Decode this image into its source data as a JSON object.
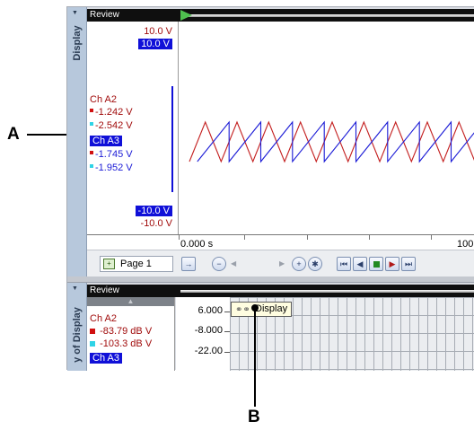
{
  "top_panel": {
    "side_tab": "Display",
    "review_label": "Review",
    "legend": {
      "top_red": "10.0  V",
      "top_blue": "10.0  V",
      "channel_a2": "Ch A2",
      "a2_value_1": "-1.242  V",
      "a2_value_2": "-2.542  V",
      "channel_a3": "Ch A3",
      "a3_value_1": "-1.745  V",
      "a3_value_2": "-1.952  V",
      "bottom_blue": "-10.0  V",
      "bottom_red": "-10.0  V"
    },
    "x_axis": {
      "start": "0.000 s",
      "end": "100"
    },
    "toolbar": {
      "page_label": "Page 1"
    },
    "colors": {
      "red_trace": "#c42020",
      "blue_trace": "#1b1bd6"
    },
    "waveform": {
      "red_cycles": 9,
      "blue_cycles": 9
    }
  },
  "bottom_panel": {
    "side_tab": "y of Display",
    "review_label": "Review",
    "legend": {
      "channel_a2": "Ch A2",
      "a2_value": "-83.79  dB V",
      "a3_value": "-103.3  dB V",
      "channel_a3": "Ch A3"
    },
    "y_axis": [
      "6.000",
      "-8.000",
      "-22.00"
    ],
    "tooltip": {
      "icon": "chain-link-icon",
      "text": "Display"
    }
  },
  "callouts": {
    "a": "A",
    "b": "B"
  }
}
